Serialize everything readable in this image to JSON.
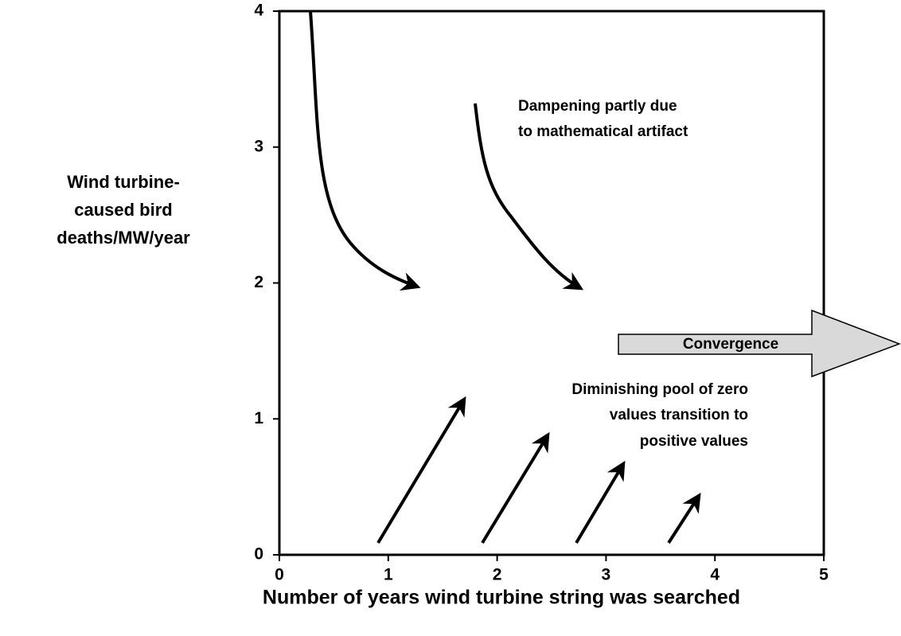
{
  "chart_data": {
    "type": "line",
    "ylabel": [
      "Wind turbine-",
      "caused bird",
      "deaths/MW/year"
    ],
    "xlabel": "Number of years wind turbine string was searched",
    "xlim": [
      0,
      5
    ],
    "xticks": [
      0,
      1,
      2,
      3,
      4,
      5
    ],
    "ylim": [
      0,
      4
    ],
    "yticks": [
      0,
      1,
      2,
      3,
      4
    ],
    "annotations": [
      [
        "Dampening partly due",
        "to mathematical artifact"
      ],
      [
        "Diminishing pool of zero",
        "values transition to",
        "positive values"
      ],
      [
        "Convergence"
      ]
    ]
  }
}
